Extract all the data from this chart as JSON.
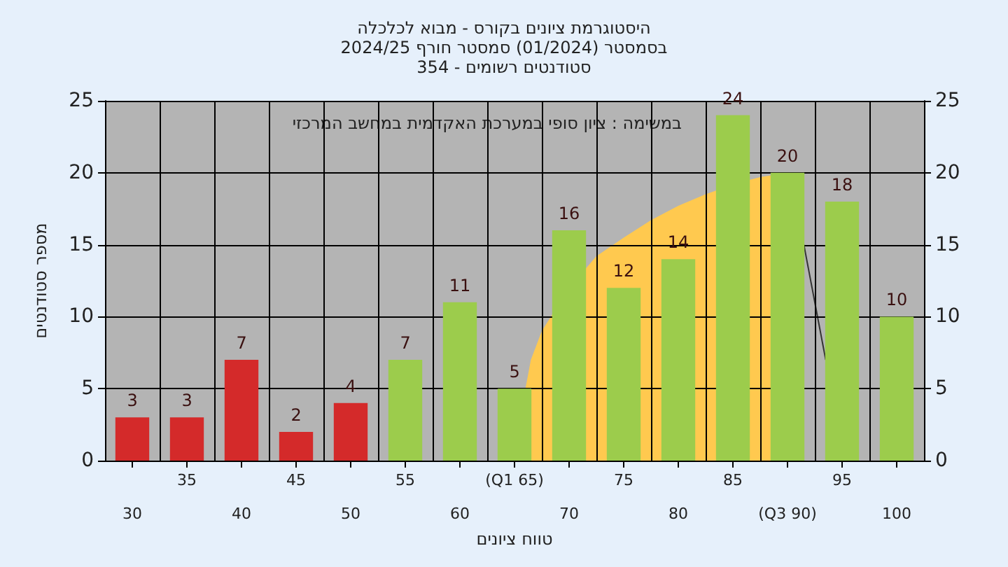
{
  "chart_data": {
    "type": "bar",
    "title": "היסטוגרמת ציונים בקורס - מבוא לכלכלה\nבסמסטר (01/2024) סמסטר חורף 2024/25\nסטודנטים רשומים - 354",
    "xlabel": "טווח ציונים",
    "ylabel": "מספר סטודנטים",
    "annotations": [
      "במשימה : ציון סופי במערכת האקדמית במחשב המרכזי"
    ],
    "categories": [
      "30",
      "35",
      "40",
      "45",
      "50",
      "55",
      "60",
      "(Q1 65)",
      "70",
      "75",
      "80",
      "85",
      "(Q3 90)",
      "95",
      "100"
    ],
    "series": [
      {
        "colors": [
          "#d42a2a",
          "#d42a2a",
          "#d42a2a",
          "#d42a2a",
          "#d42a2a",
          "#9ccc4c",
          "#9ccc4c",
          "#9ccc4c",
          "#9ccc4c",
          "#9ccc4c",
          "#9ccc4c",
          "#9ccc4c",
          "#9ccc4c",
          "#9ccc4c",
          "#9ccc4c"
        ],
        "values": [
          3,
          3,
          7,
          2,
          4,
          7,
          11,
          5,
          16,
          12,
          14,
          24,
          20,
          18,
          10
        ]
      }
    ],
    "ylim": [
      0,
      25
    ],
    "yticks": [
      0,
      5,
      10,
      15,
      20,
      25
    ],
    "y2lim": [
      0,
      25
    ],
    "y2ticks": [
      0,
      5,
      10,
      15,
      20,
      25
    ],
    "data_labels": true,
    "grid": true
  }
}
